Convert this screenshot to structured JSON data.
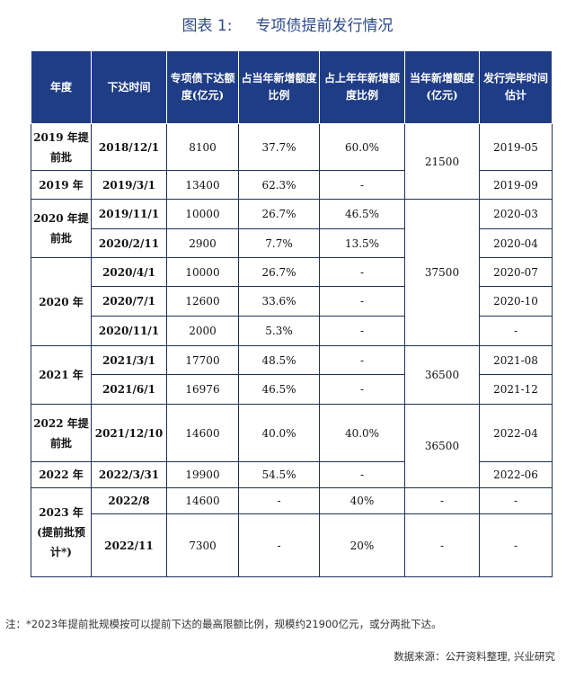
{
  "title": {
    "label": "图表 1:",
    "text": "专项债提前发行情况"
  },
  "headers": [
    "年度",
    "下达时间",
    "专项债下达额度(亿元)",
    "占当年新增额度比例",
    "占上年年新增额度比例",
    "当年新增额度(亿元)",
    "发行完毕时间估计"
  ],
  "groups": [
    {
      "year": "2019 年提前批",
      "subtotal": "21500"
    },
    {
      "year": "2019 年"
    },
    {
      "year": "2020 年提前批",
      "subtotal": "37500"
    },
    {
      "year": "2020 年"
    },
    {
      "year": "2021 年",
      "subtotal": "36500"
    },
    {
      "year": "2022 年提前批",
      "subtotal": "36500"
    },
    {
      "year": "2022 年"
    },
    {
      "year": "2023 年(提前批预计*)"
    }
  ],
  "rows": [
    {
      "date": "2018/12/1",
      "quota": "8100",
      "ratio_cur": "37.7%",
      "ratio_prev": "60.0%",
      "finish": "2019-05"
    },
    {
      "date": "2019/3/1",
      "quota": "13400",
      "ratio_cur": "62.3%",
      "ratio_prev": "-",
      "finish": "2019-09"
    },
    {
      "date": "2019/11/1",
      "quota": "10000",
      "ratio_cur": "26.7%",
      "ratio_prev": "46.5%",
      "finish": "2020-03"
    },
    {
      "date": "2020/2/11",
      "quota": "2900",
      "ratio_cur": "7.7%",
      "ratio_prev": "13.5%",
      "finish": "2020-04"
    },
    {
      "date": "2020/4/1",
      "quota": "10000",
      "ratio_cur": "26.7%",
      "ratio_prev": "-",
      "finish": "2020-07"
    },
    {
      "date": "2020/7/1",
      "quota": "12600",
      "ratio_cur": "33.6%",
      "ratio_prev": "-",
      "finish": "2020-10"
    },
    {
      "date": "2020/11/1",
      "quota": "2000",
      "ratio_cur": "5.3%",
      "ratio_prev": "-",
      "finish": "-"
    },
    {
      "date": "2021/3/1",
      "quota": "17700",
      "ratio_cur": "48.5%",
      "ratio_prev": "-",
      "finish": "2021-08"
    },
    {
      "date": "2021/6/1",
      "quota": "16976",
      "ratio_cur": "46.5%",
      "ratio_prev": "-",
      "finish": "2021-12"
    },
    {
      "date": "2021/12/10",
      "quota": "14600",
      "ratio_cur": "40.0%",
      "ratio_prev": "40.0%",
      "finish": "2022-04"
    },
    {
      "date": "2022/3/31",
      "quota": "19900",
      "ratio_cur": "54.5%",
      "ratio_prev": "-",
      "finish": "2022-06"
    },
    {
      "date": "2022/8",
      "quota": "14600",
      "ratio_cur": "-",
      "ratio_prev": "40%",
      "new_quota": "-",
      "finish": "-"
    },
    {
      "date": "2022/11",
      "quota": "7300",
      "ratio_cur": "-",
      "ratio_prev": "20%",
      "new_quota": "-",
      "finish": "-"
    }
  ],
  "note": "注：*2023年提前批规模按可以提前下达的最高限额比例，规模约21900亿元，或分两批下达。",
  "source": "数据来源：公开资料整理, 兴业研究"
}
